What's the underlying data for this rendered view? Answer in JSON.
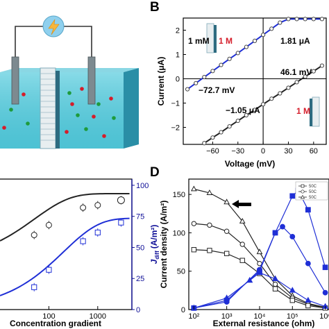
{
  "panels": {
    "B": "B",
    "D": "D"
  },
  "colors": {
    "blue": "#1f2fd6",
    "navy": "#0d0d96",
    "dark": "#222222",
    "grey": "#555555",
    "membrane": "#7fa9b8",
    "water": "#55c8d8"
  },
  "panel_a": {
    "icons": [
      "lightning-bolt-icon",
      "electrode-icon",
      "membrane-icon",
      "cation-sphere-icon",
      "anion-sphere-icon"
    ]
  },
  "chart_data": [
    {
      "panel": "B",
      "type": "line",
      "xlabel": "Voltage (mV)",
      "ylabel": "Current (μA)",
      "xlim": [
        -95,
        75
      ],
      "ylim": [
        -2.7,
        2.5
      ],
      "xticks": [
        -60,
        -30,
        0,
        30,
        60
      ],
      "yticks": [
        -2,
        -1,
        0,
        1,
        2
      ],
      "series": [
        {
          "color": "#1f2fd6",
          "x": [
            -90,
            -80,
            -70,
            -60,
            -50,
            -40,
            -30,
            -20,
            -10,
            0,
            10,
            20,
            30,
            40,
            50,
            60,
            70
          ],
          "y": [
            -0.43,
            -0.18,
            0.07,
            0.32,
            0.57,
            0.82,
            1.06,
            1.31,
            1.56,
            1.81,
            2.06,
            2.31,
            2.46,
            2.46,
            2.46,
            2.46,
            2.46
          ],
          "labels": {
            "conc": "1 mM",
            "gradient": "1 M"
          }
        },
        {
          "color": "#222222",
          "x": [
            -90,
            -80,
            -70,
            -60,
            -50,
            -40,
            -30,
            -20,
            -10,
            0,
            10,
            20,
            30,
            40,
            50,
            60,
            70
          ],
          "y": [
            -3.1,
            -2.87,
            -2.65,
            -2.42,
            -2.2,
            -1.96,
            -1.73,
            -1.5,
            -1.28,
            -1.05,
            -0.82,
            -0.6,
            -0.37,
            -0.14,
            0.09,
            0.31,
            0.54
          ],
          "labels": {
            "gradient": "1 M"
          }
        }
      ],
      "annotations": [
        "1.81 μA",
        "46.1 mV",
        "−72.7 mV",
        "−1.05 μA"
      ]
    },
    {
      "panel": "C",
      "type": "line",
      "xlabel": "Concentration gradient",
      "y2label": "J",
      "y2label_sub": "diff",
      "y2label_unit": "(A/m²)",
      "xscale": "log",
      "xticks": [
        100,
        1000
      ],
      "xtick_labels": [
        "100",
        "1000"
      ],
      "y2ticks": [
        0,
        25,
        50,
        75,
        100
      ],
      "y2lim": [
        0,
        105
      ],
      "series": [
        {
          "marker": "circle",
          "color": "#222222",
          "axis": "left",
          "x": [
            50,
            100,
            500,
            1000,
            3000
          ],
          "y": [
            60,
            68,
            82,
            84,
            88
          ]
        },
        {
          "marker": "square",
          "color": "#1f2fd6",
          "axis": "right",
          "x": [
            50,
            100,
            500,
            1000,
            3000
          ],
          "y": [
            18,
            32,
            55,
            62,
            70
          ]
        }
      ]
    },
    {
      "panel": "D",
      "type": "line",
      "xlabel": "External resistance (ohm)",
      "ylabel": "Current density (A/m²)",
      "xscale": "log",
      "xticks": [
        100,
        1000,
        10000,
        100000,
        1000000
      ],
      "xtick_labels": [
        "10²",
        "10³",
        "10⁴",
        "10⁵",
        "10⁶"
      ],
      "yticks": [
        0,
        50,
        100,
        150
      ],
      "ylim": [
        0,
        170
      ],
      "legend": {
        "position": "top-right",
        "entries": [
          "50C",
          "50C",
          "50C"
        ]
      },
      "series": [
        {
          "marker": "open-triangle",
          "color": "#222222",
          "x": [
            100,
            300,
            1000,
            3000,
            10000,
            30000,
            100000,
            300000,
            1000000
          ],
          "y": [
            157,
            152,
            140,
            115,
            75,
            40,
            18,
            8,
            3
          ]
        },
        {
          "marker": "open-circle",
          "color": "#222222",
          "x": [
            100,
            300,
            1000,
            3000,
            10000,
            30000,
            100000,
            300000,
            1000000
          ],
          "y": [
            112,
            110,
            102,
            85,
            60,
            33,
            15,
            7,
            2
          ]
        },
        {
          "marker": "open-square",
          "color": "#222222",
          "x": [
            100,
            300,
            1000,
            3000,
            10000,
            30000,
            100000,
            300000,
            1000000
          ],
          "y": [
            78,
            77,
            73,
            64,
            47,
            27,
            12,
            5,
            2
          ]
        },
        {
          "marker": "filled-square",
          "color": "#1f2fd6",
          "x": [
            100,
            1000,
            10000,
            30000,
            100000,
            150000,
            300000,
            1000000
          ],
          "y": [
            2,
            12,
            50,
            100,
            148,
            155,
            130,
            55
          ]
        },
        {
          "marker": "filled-circle",
          "color": "#1f2fd6",
          "x": [
            100,
            1000,
            10000,
            30000,
            50000,
            100000,
            300000,
            1000000
          ],
          "y": [
            2,
            10,
            52,
            100,
            108,
            95,
            60,
            22
          ]
        },
        {
          "marker": "filled-triangle",
          "color": "#1f2fd6",
          "x": [
            100,
            1000,
            5000,
            10000,
            30000,
            100000,
            300000,
            1000000
          ],
          "y": [
            2,
            15,
            38,
            48,
            40,
            25,
            12,
            4
          ]
        }
      ]
    }
  ]
}
